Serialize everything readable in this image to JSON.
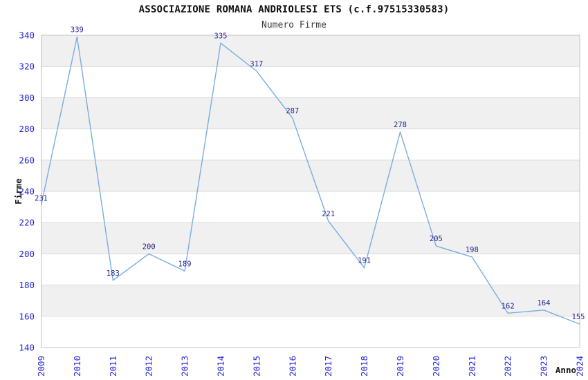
{
  "chart_data": {
    "type": "line",
    "title": "ASSOCIAZIONE ROMANA ANDRIOLESI ETS (c.f.97515330583)",
    "subtitle": "Numero Firme",
    "xlabel": "Anno",
    "ylabel": "Firme",
    "categories": [
      "2009",
      "2010",
      "2011",
      "2012",
      "2013",
      "2014",
      "2015",
      "2016",
      "2017",
      "2018",
      "2019",
      "2020",
      "2021",
      "2022",
      "2023",
      "2024"
    ],
    "series": [
      {
        "name": "Numero Firme",
        "values": [
          231,
          339,
          183,
          200,
          189,
          335,
          317,
          287,
          221,
          191,
          278,
          205,
          198,
          162,
          164,
          155
        ]
      }
    ],
    "ylim": [
      140,
      340
    ],
    "ytick_step": 20,
    "yticks": [
      140,
      160,
      180,
      200,
      220,
      240,
      260,
      280,
      300,
      320,
      340
    ],
    "grid": "horizontal",
    "legend": "none",
    "band_fill": "alternating-horizontal",
    "point_labels": "visible",
    "colors": {
      "line": "#77ade2",
      "point_label": "#23238e",
      "tick_label": "#2424dd",
      "band": "#f0f0f0",
      "grid_line": "#d9d9d9",
      "plot_border": "#c3c3c3",
      "title": "#101010",
      "subtitle": "#3c3c3c",
      "axis_title": "#181818",
      "background": "#ffffff"
    }
  }
}
